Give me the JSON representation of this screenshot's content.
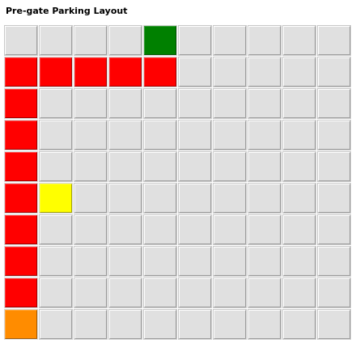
{
  "title": "Pre-gate Parking Layout",
  "grid": {
    "rows": 10,
    "cols": 10,
    "empty_color": "#e0e0e0",
    "colors": {
      "red": "#ff0000",
      "green": "#008000",
      "yellow": "#ffff00",
      "orange": "#ff8c00"
    },
    "cells": [
      [
        null,
        null,
        null,
        null,
        "green",
        null,
        null,
        null,
        null,
        null
      ],
      [
        "red",
        "red",
        "red",
        "red",
        "red",
        null,
        null,
        null,
        null,
        null
      ],
      [
        "red",
        null,
        null,
        null,
        null,
        null,
        null,
        null,
        null,
        null
      ],
      [
        "red",
        null,
        null,
        null,
        null,
        null,
        null,
        null,
        null,
        null
      ],
      [
        "red",
        null,
        null,
        null,
        null,
        null,
        null,
        null,
        null,
        null
      ],
      [
        "red",
        "yellow",
        null,
        null,
        null,
        null,
        null,
        null,
        null,
        null
      ],
      [
        "red",
        null,
        null,
        null,
        null,
        null,
        null,
        null,
        null,
        null
      ],
      [
        "red",
        null,
        null,
        null,
        null,
        null,
        null,
        null,
        null,
        null
      ],
      [
        "red",
        null,
        null,
        null,
        null,
        null,
        null,
        null,
        null,
        null
      ],
      [
        "orange",
        null,
        null,
        null,
        null,
        null,
        null,
        null,
        null,
        null
      ]
    ]
  }
}
